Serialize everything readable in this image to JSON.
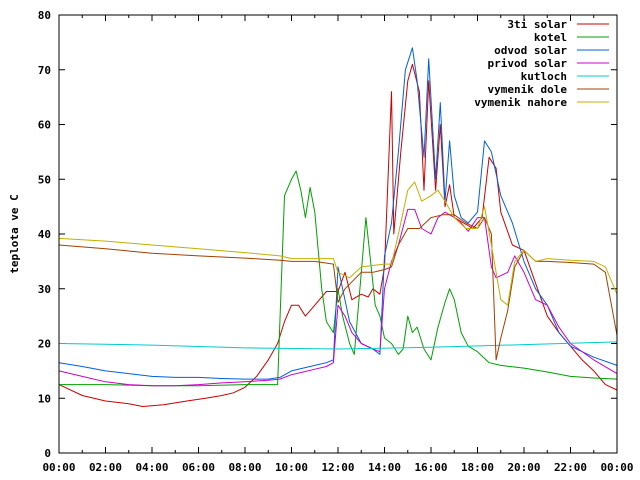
{
  "chart_data": {
    "type": "line",
    "title": "",
    "xlabel": "",
    "ylabel": "teplota ve C",
    "xlim": [
      0,
      24
    ],
    "ylim": [
      0,
      80
    ],
    "x_ticks": [
      "00:00",
      "02:00",
      "04:00",
      "06:00",
      "08:00",
      "10:00",
      "12:00",
      "14:00",
      "16:00",
      "18:00",
      "20:00",
      "22:00",
      "00:00"
    ],
    "y_ticks": [
      0,
      10,
      20,
      30,
      40,
      50,
      60,
      70,
      80
    ],
    "grid": false,
    "legend_position": "top-right",
    "series": [
      {
        "name": "3ti solar",
        "color": "#cc0000",
        "points": [
          [
            0,
            12.5
          ],
          [
            1,
            10.5
          ],
          [
            2,
            9.5
          ],
          [
            3,
            9
          ],
          [
            3.6,
            8.5
          ],
          [
            4.5,
            8.8
          ],
          [
            5.5,
            9.5
          ],
          [
            6.3,
            10
          ],
          [
            7,
            10.5
          ],
          [
            7.5,
            11
          ],
          [
            8,
            12
          ],
          [
            8.5,
            14
          ],
          [
            9,
            17
          ],
          [
            9.4,
            20
          ],
          [
            9.7,
            24
          ],
          [
            10,
            27
          ],
          [
            10.3,
            27
          ],
          [
            10.6,
            25
          ],
          [
            11,
            27
          ],
          [
            11.5,
            29.5
          ],
          [
            12,
            29.5
          ],
          [
            12.3,
            33
          ],
          [
            12.6,
            28
          ],
          [
            13,
            29
          ],
          [
            13.3,
            28.5
          ],
          [
            13.5,
            30
          ],
          [
            13.8,
            29
          ],
          [
            14,
            34
          ],
          [
            14.3,
            66
          ],
          [
            14.4,
            40
          ],
          [
            14.7,
            55
          ],
          [
            15,
            68
          ],
          [
            15.2,
            71
          ],
          [
            15.5,
            66
          ],
          [
            15.7,
            48
          ],
          [
            15.9,
            68
          ],
          [
            16.2,
            48
          ],
          [
            16.4,
            60
          ],
          [
            16.6,
            45
          ],
          [
            16.8,
            49
          ],
          [
            17,
            43
          ],
          [
            17.4,
            42
          ],
          [
            17.8,
            41
          ],
          [
            18.2,
            43
          ],
          [
            18.5,
            54
          ],
          [
            18.8,
            52
          ],
          [
            19,
            44
          ],
          [
            19.5,
            38
          ],
          [
            20,
            37
          ],
          [
            20.5,
            31
          ],
          [
            21,
            25
          ],
          [
            21.5,
            22
          ],
          [
            22,
            19.5
          ],
          [
            22.5,
            17
          ],
          [
            23,
            15
          ],
          [
            23.5,
            12.5
          ],
          [
            24,
            11.5
          ]
        ]
      },
      {
        "name": "kotel",
        "color": "#00a000",
        "points": [
          [
            0,
            12.5
          ],
          [
            2,
            12.5
          ],
          [
            4,
            12.3
          ],
          [
            6,
            12.3
          ],
          [
            8,
            12.5
          ],
          [
            9.4,
            12.5
          ],
          [
            9.7,
            47
          ],
          [
            10,
            50
          ],
          [
            10.2,
            51.5
          ],
          [
            10.4,
            48
          ],
          [
            10.6,
            43
          ],
          [
            10.8,
            48.5
          ],
          [
            11,
            44
          ],
          [
            11.3,
            30
          ],
          [
            11.5,
            24
          ],
          [
            11.8,
            22
          ],
          [
            12,
            30
          ],
          [
            12.2,
            25
          ],
          [
            12.5,
            20
          ],
          [
            12.7,
            18
          ],
          [
            13,
            33
          ],
          [
            13.2,
            43
          ],
          [
            13.4,
            35
          ],
          [
            13.6,
            27
          ],
          [
            13.8,
            25
          ],
          [
            14,
            21
          ],
          [
            14.3,
            20
          ],
          [
            14.6,
            18
          ],
          [
            14.8,
            19
          ],
          [
            15,
            25
          ],
          [
            15.2,
            22
          ],
          [
            15.4,
            23
          ],
          [
            15.7,
            19
          ],
          [
            16,
            17
          ],
          [
            16.3,
            23
          ],
          [
            16.6,
            27.5
          ],
          [
            16.8,
            30
          ],
          [
            17,
            28
          ],
          [
            17.3,
            22
          ],
          [
            17.6,
            19.5
          ],
          [
            18,
            18.5
          ],
          [
            18.5,
            16.5
          ],
          [
            19,
            16
          ],
          [
            20,
            15.5
          ],
          [
            21,
            14.8
          ],
          [
            22,
            14
          ],
          [
            23,
            13.7
          ],
          [
            24,
            13.5
          ]
        ]
      },
      {
        "name": "odvod solar",
        "color": "#0060dd",
        "points": [
          [
            0,
            16.5
          ],
          [
            1,
            15.8
          ],
          [
            2,
            15
          ],
          [
            3,
            14.5
          ],
          [
            4,
            14
          ],
          [
            5,
            13.8
          ],
          [
            6,
            13.8
          ],
          [
            7,
            13.6
          ],
          [
            8,
            13.5
          ],
          [
            9,
            13.5
          ],
          [
            9.5,
            13.8
          ],
          [
            10,
            15
          ],
          [
            10.5,
            15.5
          ],
          [
            11,
            16
          ],
          [
            11.5,
            16.5
          ],
          [
            11.8,
            17
          ],
          [
            12,
            34
          ],
          [
            12.2,
            30
          ],
          [
            12.5,
            24
          ],
          [
            13,
            20
          ],
          [
            13.5,
            19
          ],
          [
            13.8,
            18
          ],
          [
            14,
            36
          ],
          [
            14.3,
            42
          ],
          [
            14.6,
            55
          ],
          [
            14.9,
            70
          ],
          [
            15.2,
            74
          ],
          [
            15.4,
            68
          ],
          [
            15.7,
            54
          ],
          [
            15.9,
            72
          ],
          [
            16.2,
            50
          ],
          [
            16.4,
            64
          ],
          [
            16.6,
            46
          ],
          [
            16.8,
            57
          ],
          [
            17,
            47
          ],
          [
            17.3,
            43
          ],
          [
            17.6,
            42
          ],
          [
            18,
            44
          ],
          [
            18.3,
            57
          ],
          [
            18.6,
            55
          ],
          [
            19,
            47
          ],
          [
            19.5,
            42
          ],
          [
            20,
            35
          ],
          [
            20.5,
            30
          ],
          [
            21,
            27
          ],
          [
            21.5,
            22
          ],
          [
            22,
            19.5
          ],
          [
            23,
            17.5
          ],
          [
            24,
            16
          ]
        ]
      },
      {
        "name": "privod solar",
        "color": "#cc00cc",
        "points": [
          [
            0,
            15
          ],
          [
            1,
            14
          ],
          [
            2,
            13
          ],
          [
            3,
            12.5
          ],
          [
            4,
            12.3
          ],
          [
            5,
            12.3
          ],
          [
            6,
            12.5
          ],
          [
            7,
            12.8
          ],
          [
            8,
            13
          ],
          [
            9,
            13.3
          ],
          [
            9.5,
            13.5
          ],
          [
            10,
            14.3
          ],
          [
            10.5,
            14.8
          ],
          [
            11,
            15.3
          ],
          [
            11.5,
            15.8
          ],
          [
            11.8,
            16.5
          ],
          [
            12,
            27
          ],
          [
            12.3,
            25
          ],
          [
            12.6,
            22
          ],
          [
            13,
            20
          ],
          [
            13.5,
            19
          ],
          [
            13.8,
            18.5
          ],
          [
            14,
            30
          ],
          [
            14.3,
            35
          ],
          [
            14.6,
            38
          ],
          [
            15,
            44.5
          ],
          [
            15.3,
            44.5
          ],
          [
            15.6,
            41
          ],
          [
            16,
            40
          ],
          [
            16.3,
            43
          ],
          [
            16.6,
            44
          ],
          [
            17,
            43
          ],
          [
            17.3,
            42
          ],
          [
            17.6,
            40.5
          ],
          [
            18,
            43
          ],
          [
            18.3,
            43
          ],
          [
            18.6,
            34
          ],
          [
            18.8,
            32
          ],
          [
            19.3,
            33
          ],
          [
            19.6,
            36
          ],
          [
            20,
            33
          ],
          [
            20.5,
            28
          ],
          [
            21,
            27
          ],
          [
            21.5,
            23
          ],
          [
            22,
            20
          ],
          [
            23,
            17
          ],
          [
            24,
            14.5
          ]
        ]
      },
      {
        "name": "kutloch",
        "color": "#00cccc",
        "points": [
          [
            0,
            20
          ],
          [
            4,
            19.7
          ],
          [
            8,
            19.2
          ],
          [
            12,
            19
          ],
          [
            16,
            19.3
          ],
          [
            20,
            19.8
          ],
          [
            24,
            20.3
          ]
        ]
      },
      {
        "name": "vymenik dole",
        "color": "#a04000",
        "points": [
          [
            0,
            38
          ],
          [
            2,
            37.3
          ],
          [
            4,
            36.5
          ],
          [
            6,
            36
          ],
          [
            8,
            35.6
          ],
          [
            9.5,
            35.2
          ],
          [
            10,
            35
          ],
          [
            11,
            35
          ],
          [
            11.8,
            34.5
          ],
          [
            12,
            27.5
          ],
          [
            12.3,
            30
          ],
          [
            13,
            33
          ],
          [
            13.5,
            33
          ],
          [
            14,
            33.5
          ],
          [
            14.3,
            34
          ],
          [
            14.6,
            38
          ],
          [
            15,
            41
          ],
          [
            15.5,
            41
          ],
          [
            16,
            43
          ],
          [
            16.5,
            43.5
          ],
          [
            17,
            43.5
          ],
          [
            17.5,
            42
          ],
          [
            18,
            41
          ],
          [
            18.3,
            43
          ],
          [
            18.6,
            40
          ],
          [
            18.8,
            17
          ],
          [
            19,
            21
          ],
          [
            19.3,
            26
          ],
          [
            19.6,
            34
          ],
          [
            20,
            37
          ],
          [
            20.5,
            35
          ],
          [
            21,
            35
          ],
          [
            22,
            34.8
          ],
          [
            23,
            34.5
          ],
          [
            23.5,
            33
          ],
          [
            24,
            21.5
          ]
        ]
      },
      {
        "name": "vymenik nahore",
        "color": "#c0b000",
        "points": [
          [
            0,
            39.2
          ],
          [
            2,
            38.7
          ],
          [
            4,
            38
          ],
          [
            6,
            37.3
          ],
          [
            8,
            36.6
          ],
          [
            9.5,
            36
          ],
          [
            10,
            35.5
          ],
          [
            11,
            35.5
          ],
          [
            11.8,
            35.5
          ],
          [
            12,
            33
          ],
          [
            12.5,
            32
          ],
          [
            13,
            34
          ],
          [
            14,
            34.5
          ],
          [
            14.3,
            34.5
          ],
          [
            14.6,
            40
          ],
          [
            15,
            48
          ],
          [
            15.3,
            49.5
          ],
          [
            15.6,
            46
          ],
          [
            16,
            47
          ],
          [
            16.3,
            48
          ],
          [
            16.6,
            46
          ],
          [
            17,
            43
          ],
          [
            17.5,
            41
          ],
          [
            18,
            41
          ],
          [
            18.3,
            45
          ],
          [
            18.6,
            38
          ],
          [
            19,
            28
          ],
          [
            19.3,
            27
          ],
          [
            19.6,
            35
          ],
          [
            20,
            37
          ],
          [
            20.5,
            35
          ],
          [
            21,
            35.5
          ],
          [
            22,
            35.2
          ],
          [
            23,
            35
          ],
          [
            23.5,
            34
          ],
          [
            24,
            29
          ]
        ]
      }
    ]
  }
}
